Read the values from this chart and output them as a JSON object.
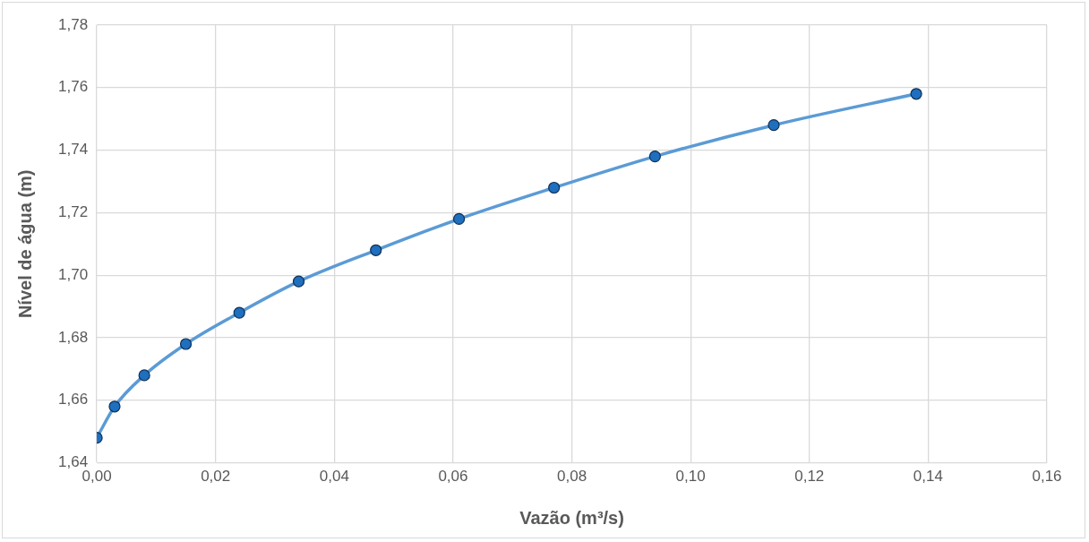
{
  "chart_data": {
    "type": "line",
    "xlabel": "Vazão (m³/s)",
    "ylabel": "Nível de água (m)",
    "x": [
      0,
      0.003,
      0.008,
      0.015,
      0.024,
      0.034,
      0.047,
      0.061,
      0.077,
      0.094,
      0.114,
      0.138
    ],
    "series": [
      {
        "color": "#5b9bd5",
        "values": [
          1.648,
          1.658,
          1.668,
          1.678,
          1.688,
          1.698,
          1.708,
          1.718,
          1.728,
          1.738,
          1.748,
          1.758
        ]
      }
    ],
    "xlim": [
      0,
      0.16
    ],
    "xticks": [
      {
        "value": 0,
        "label": "0,00"
      },
      {
        "value": 0.02,
        "label": "0,02"
      },
      {
        "value": 0.04,
        "label": "0,04"
      },
      {
        "value": 0.06,
        "label": "0,06"
      },
      {
        "value": 0.08,
        "label": "0,08"
      },
      {
        "value": 0.1,
        "label": "0,10"
      },
      {
        "value": 0.12,
        "label": "0,12"
      },
      {
        "value": 0.14,
        "label": "0,14"
      },
      {
        "value": 0.16,
        "label": "0,16"
      }
    ],
    "ylim": [
      1.64,
      1.78
    ],
    "yticks": [
      {
        "value": 1.64,
        "label": "1,64"
      },
      {
        "value": 1.66,
        "label": "1,66"
      },
      {
        "value": 1.68,
        "label": "1,68"
      },
      {
        "value": 1.7,
        "label": "1,70"
      },
      {
        "value": 1.72,
        "label": "1,72"
      },
      {
        "value": 1.74,
        "label": "1,74"
      },
      {
        "value": 1.76,
        "label": "1,76"
      },
      {
        "value": 1.78,
        "label": "1,78"
      }
    ],
    "grid": true,
    "legend": false,
    "marker": "circle",
    "line_style": "solid"
  }
}
